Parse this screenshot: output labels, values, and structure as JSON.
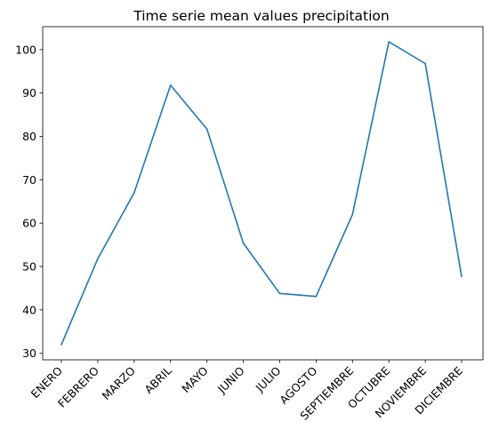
{
  "chart_data": {
    "type": "line",
    "title": "Time serie mean values precipitation",
    "xlabel": "",
    "ylabel": "",
    "categories": [
      "ENERO",
      "FEBRERO",
      "MARZO",
      "ABRIL",
      "MAYO",
      "JUNIO",
      "JULIO",
      "AGOSTO",
      "SEPTIEMBRE",
      "OCTUBRE",
      "NOVIEMBRE",
      "DICIEMBRE"
    ],
    "series": [
      {
        "values": [
          32.0,
          51.8,
          67.0,
          91.8,
          81.7,
          55.4,
          43.8,
          43.1,
          62.0,
          101.8,
          96.8,
          47.7
        ],
        "color": "#1f77b4"
      }
    ],
    "yticks": [
      30,
      40,
      50,
      60,
      70,
      80,
      90,
      100
    ],
    "ylim": [
      28.5,
      105.3
    ],
    "grid": false,
    "legend": "none"
  }
}
